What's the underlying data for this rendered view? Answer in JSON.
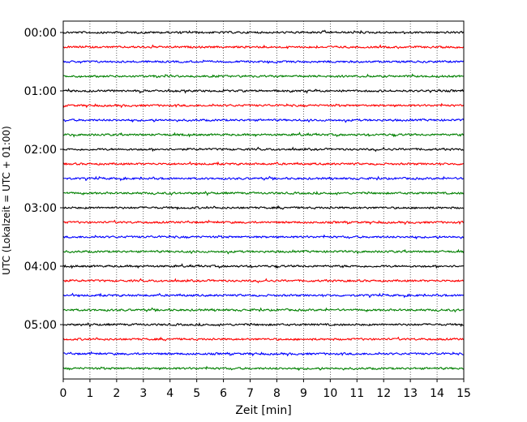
{
  "chart_data": {
    "type": "line",
    "xlabel": "Zeit  [min]",
    "ylabel": "UTC (Lokalzeit = UTC + 01:00)",
    "xlim": [
      0,
      15
    ],
    "x_ticks": [
      "0",
      "1",
      "2",
      "3",
      "4",
      "5",
      "6",
      "7",
      "8",
      "9",
      "10",
      "11",
      "12",
      "13",
      "14",
      "15"
    ],
    "y_ticks": [
      "00:00",
      "01:00",
      "02:00",
      "03:00",
      "04:00",
      "05:00"
    ],
    "grid": "vertical dotted at every minute",
    "traces_per_hour": 4,
    "trace_interval_minutes": 15,
    "trace_colors": [
      "#000000",
      "#ff0000",
      "#0000ff",
      "#008000"
    ],
    "trace_start_times": [
      "00:00",
      "00:15",
      "00:30",
      "00:45",
      "01:00",
      "01:15",
      "01:30",
      "01:45",
      "02:00",
      "02:15",
      "02:30",
      "02:45",
      "03:00",
      "03:15",
      "03:30",
      "03:45",
      "04:00",
      "04:15",
      "04:30",
      "04:45",
      "05:00",
      "05:15",
      "05:30",
      "05:45"
    ]
  }
}
